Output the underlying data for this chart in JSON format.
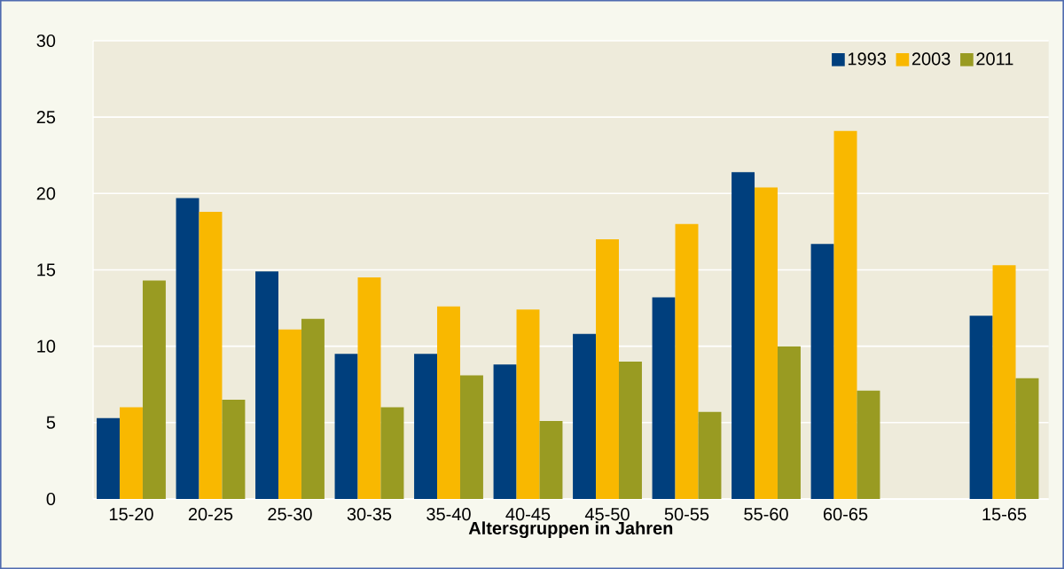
{
  "chart_data": {
    "type": "bar",
    "xlabel": "Altersgruppen in Jahren",
    "categories": [
      "15-20",
      "20-25",
      "25-30",
      "30-35",
      "35-40",
      "40-45",
      "45-50",
      "50-55",
      "55-60",
      "60-65",
      null,
      "15-65"
    ],
    "series": [
      {
        "name": "1993",
        "color": "#003f7d",
        "values": [
          5.3,
          19.7,
          14.9,
          9.5,
          9.5,
          8.8,
          10.8,
          13.2,
          21.4,
          16.7,
          null,
          12.0
        ]
      },
      {
        "name": "2003",
        "color": "#f9b800",
        "values": [
          6.0,
          18.8,
          11.1,
          14.5,
          12.6,
          12.4,
          17.0,
          18.0,
          20.4,
          24.1,
          null,
          15.3
        ]
      },
      {
        "name": "2011",
        "color": "#999b22",
        "values": [
          14.3,
          6.5,
          11.8,
          6.0,
          8.1,
          5.1,
          9.0,
          5.7,
          10.0,
          7.1,
          null,
          7.9
        ]
      }
    ],
    "ylim": [
      0,
      30
    ],
    "yticks": [
      0,
      5,
      10,
      15,
      20,
      25,
      30
    ],
    "grid": "y",
    "legend": "top right"
  }
}
